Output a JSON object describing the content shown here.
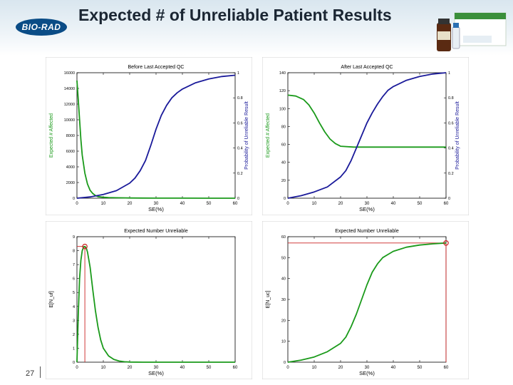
{
  "slide": {
    "title": "Expected # of Unreliable Patient Results",
    "logo_text": "BIO-RAD",
    "page_number": "27"
  },
  "chart_data": [
    {
      "id": "top-left",
      "type": "line",
      "title": "Before Last Accepted QC",
      "xlabel": "SE(%)",
      "ylabel": "Expected # Affected",
      "y2label": "Probability of Unreliable Result",
      "xlim": [
        0,
        60
      ],
      "ylim": [
        0,
        16000
      ],
      "y2lim": [
        0,
        1
      ],
      "xticks": [
        "0",
        "10",
        "20",
        "30",
        "40",
        "50",
        "60"
      ],
      "yticks": [
        "0",
        "2000",
        "4000",
        "6000",
        "8000",
        "10000",
        "12000",
        "14000",
        "16000"
      ],
      "y2ticks": [
        "0",
        "0.2",
        "0.4",
        "0.6",
        "0.8",
        "1"
      ],
      "series": [
        {
          "axis": "y",
          "color": "#1a9a1a",
          "x": [
            0,
            0.5,
            1,
            1.5,
            2,
            3,
            4,
            5,
            6,
            7,
            8,
            10,
            12,
            15,
            20,
            25,
            30,
            40,
            50,
            60
          ],
          "y": [
            15000,
            12500,
            10000,
            7500,
            5500,
            3200,
            1800,
            1000,
            600,
            350,
            200,
            120,
            80,
            50,
            30,
            20,
            10,
            5,
            3,
            2
          ]
        },
        {
          "axis": "y2",
          "color": "#1a1a9a",
          "x": [
            0,
            5,
            10,
            15,
            20,
            22,
            24,
            26,
            28,
            30,
            32,
            34,
            36,
            38,
            40,
            45,
            50,
            55,
            60
          ],
          "y": [
            0,
            0.01,
            0.03,
            0.06,
            0.12,
            0.16,
            0.22,
            0.3,
            0.42,
            0.55,
            0.66,
            0.74,
            0.8,
            0.84,
            0.87,
            0.92,
            0.95,
            0.97,
            0.98
          ]
        }
      ]
    },
    {
      "id": "top-right",
      "type": "line",
      "title": "After Last Accepted QC",
      "xlabel": "SE(%)",
      "ylabel": "Expected # Affected",
      "y2label": "Probability of Unreliable Result",
      "xlim": [
        0,
        60
      ],
      "ylim": [
        0,
        140
      ],
      "y2lim": [
        0,
        1
      ],
      "xticks": [
        "0",
        "10",
        "20",
        "30",
        "40",
        "50",
        "60"
      ],
      "yticks": [
        "0",
        "20",
        "40",
        "60",
        "80",
        "100",
        "120",
        "140"
      ],
      "y2ticks": [
        "0",
        "0.2",
        "0.4",
        "0.6",
        "0.8",
        "1"
      ],
      "series": [
        {
          "axis": "y",
          "color": "#1a9a1a",
          "x": [
            0,
            3,
            6,
            8,
            10,
            12,
            14,
            16,
            18,
            20,
            25,
            30,
            40,
            50,
            60
          ],
          "y": [
            115,
            114,
            110,
            104,
            95,
            84,
            74,
            66,
            61,
            58,
            57,
            57,
            57,
            57,
            57
          ]
        },
        {
          "axis": "y2",
          "color": "#1a1a9a",
          "x": [
            0,
            5,
            10,
            15,
            20,
            22,
            24,
            26,
            28,
            30,
            32,
            34,
            36,
            38,
            40,
            45,
            50,
            55,
            60
          ],
          "y": [
            0,
            0.02,
            0.05,
            0.09,
            0.17,
            0.22,
            0.3,
            0.4,
            0.5,
            0.6,
            0.68,
            0.75,
            0.81,
            0.86,
            0.89,
            0.94,
            0.97,
            0.99,
            1
          ]
        }
      ]
    },
    {
      "id": "bottom-left",
      "type": "line",
      "title": "Expected Number Unreliable",
      "xlabel": "SE(%)",
      "ylabel": "E[N_uf]",
      "xlim": [
        0,
        60
      ],
      "ylim": [
        0,
        9
      ],
      "xticks": [
        "0",
        "10",
        "20",
        "30",
        "40",
        "50",
        "60"
      ],
      "yticks": [
        "0",
        "1",
        "2",
        "3",
        "4",
        "5",
        "6",
        "7",
        "8",
        "9"
      ],
      "marker": {
        "x": 3,
        "y": 8.3
      },
      "series": [
        {
          "axis": "y",
          "color": "#1a9a1a",
          "x": [
            0,
            0.5,
            1,
            1.5,
            2,
            2.5,
            3,
            3.5,
            4,
            5,
            6,
            7,
            8,
            9,
            10,
            12,
            14,
            16,
            18,
            20,
            25,
            30,
            40,
            50,
            60
          ],
          "y": [
            0,
            3.5,
            6,
            7.3,
            8,
            8.25,
            8.3,
            8.2,
            7.9,
            6.8,
            5.2,
            3.7,
            2.5,
            1.6,
            1,
            0.45,
            0.2,
            0.08,
            0.03,
            0.01,
            0,
            0,
            0,
            0,
            0
          ]
        }
      ]
    },
    {
      "id": "bottom-right",
      "type": "line",
      "title": "Expected Number Unreliable",
      "xlabel": "SE(%)",
      "ylabel": "E[N_uc]",
      "xlim": [
        0,
        60
      ],
      "ylim": [
        0,
        60
      ],
      "xticks": [
        "0",
        "10",
        "20",
        "30",
        "40",
        "50",
        "60"
      ],
      "yticks": [
        "0",
        "10",
        "20",
        "30",
        "40",
        "50",
        "60"
      ],
      "marker": {
        "x": 60,
        "y": 57
      },
      "series": [
        {
          "axis": "y",
          "color": "#1a9a1a",
          "x": [
            0,
            5,
            10,
            15,
            20,
            22,
            24,
            26,
            28,
            30,
            32,
            34,
            36,
            38,
            40,
            45,
            50,
            55,
            60
          ],
          "y": [
            0,
            1,
            2.5,
            5,
            9,
            12,
            17,
            23,
            30,
            37,
            43,
            47,
            50,
            51.5,
            53,
            55,
            56,
            56.6,
            57
          ]
        }
      ]
    }
  ],
  "colors": {
    "green_series": "#1a9a1a",
    "blue_series": "#1a1a9a",
    "marker": "#cc2222",
    "header_blue": "#0a4c86"
  }
}
